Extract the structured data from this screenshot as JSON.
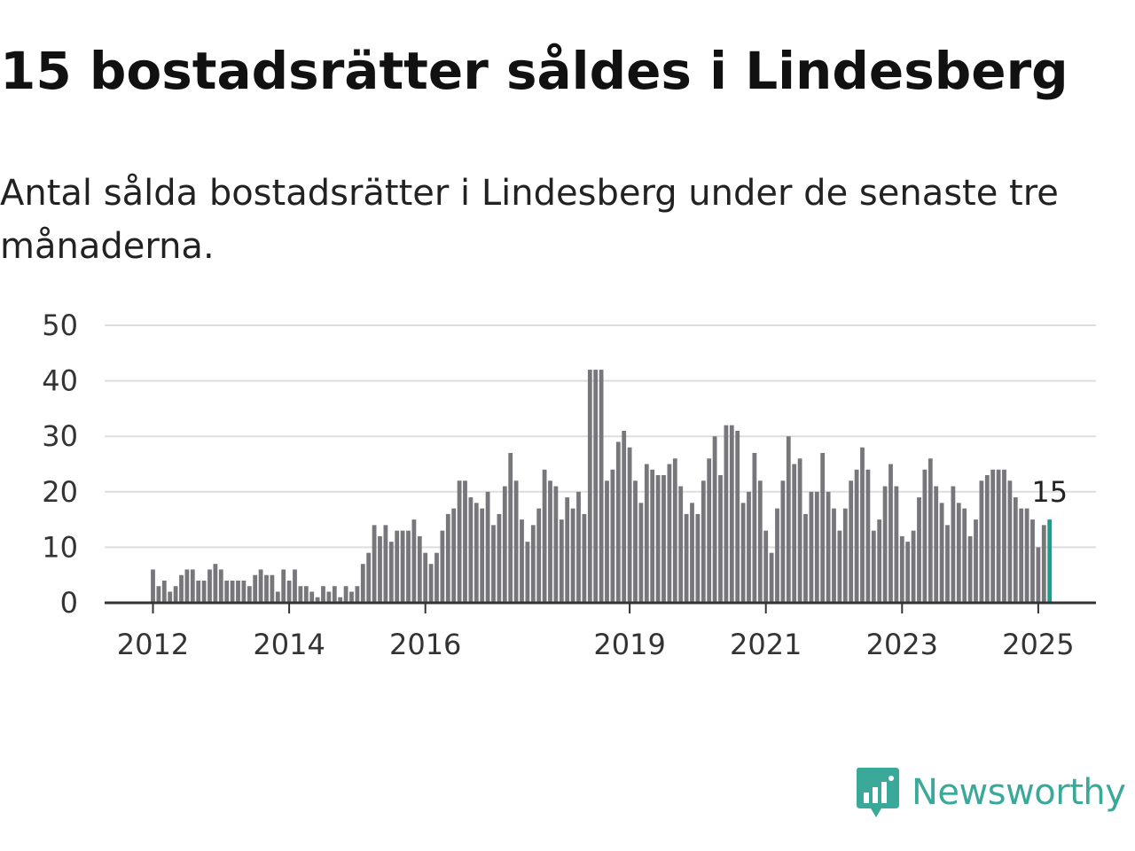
{
  "title": "15 bostadsrätter såldes i Lindesberg",
  "subtitle": "Antal sålda bostadsrätter i Lindesberg under de senaste tre månaderna.",
  "brand": {
    "name": "Newsworthy",
    "color": "#3aa99a",
    "icon": "newsworthy-logo-icon"
  },
  "colors": {
    "bar": "#77767b",
    "highlight": "#1a9c8f",
    "grid": "#dddddd",
    "axis": "#333333"
  },
  "chart_data": {
    "type": "bar",
    "ylim": [
      0,
      50
    ],
    "yticks": [
      0,
      10,
      20,
      30,
      40,
      50
    ],
    "xticks": [
      "2012",
      "2014",
      "2016",
      "2019",
      "2021",
      "2023",
      "2025"
    ],
    "grid": true,
    "x_start": "2012-01",
    "x_end": "2025-03",
    "values": [
      6,
      3,
      4,
      2,
      3,
      5,
      6,
      6,
      4,
      4,
      6,
      7,
      6,
      4,
      4,
      4,
      4,
      3,
      5,
      6,
      5,
      5,
      2,
      6,
      4,
      6,
      3,
      3,
      2,
      1,
      3,
      2,
      3,
      1,
      3,
      2,
      3,
      7,
      9,
      14,
      12,
      14,
      11,
      13,
      13,
      13,
      15,
      12,
      9,
      7,
      9,
      13,
      16,
      17,
      22,
      22,
      19,
      18,
      17,
      20,
      14,
      16,
      21,
      27,
      22,
      15,
      11,
      14,
      17,
      24,
      22,
      21,
      15,
      19,
      17,
      20,
      16,
      42,
      42,
      42,
      22,
      24,
      29,
      31,
      28,
      22,
      18,
      25,
      24,
      23,
      23,
      25,
      26,
      21,
      16,
      18,
      16,
      22,
      26,
      30,
      23,
      32,
      32,
      31,
      18,
      20,
      27,
      22,
      13,
      9,
      17,
      22,
      30,
      25,
      26,
      16,
      20,
      20,
      27,
      20,
      17,
      13,
      17,
      22,
      24,
      28,
      24,
      13,
      15,
      21,
      25,
      21,
      12,
      11,
      13,
      19,
      24,
      26,
      21,
      18,
      14,
      21,
      18,
      17,
      12,
      15,
      22,
      23,
      24,
      24,
      24,
      22,
      19,
      17,
      17,
      15,
      10,
      14,
      15
    ],
    "highlight_last": true,
    "last_label": "15"
  }
}
